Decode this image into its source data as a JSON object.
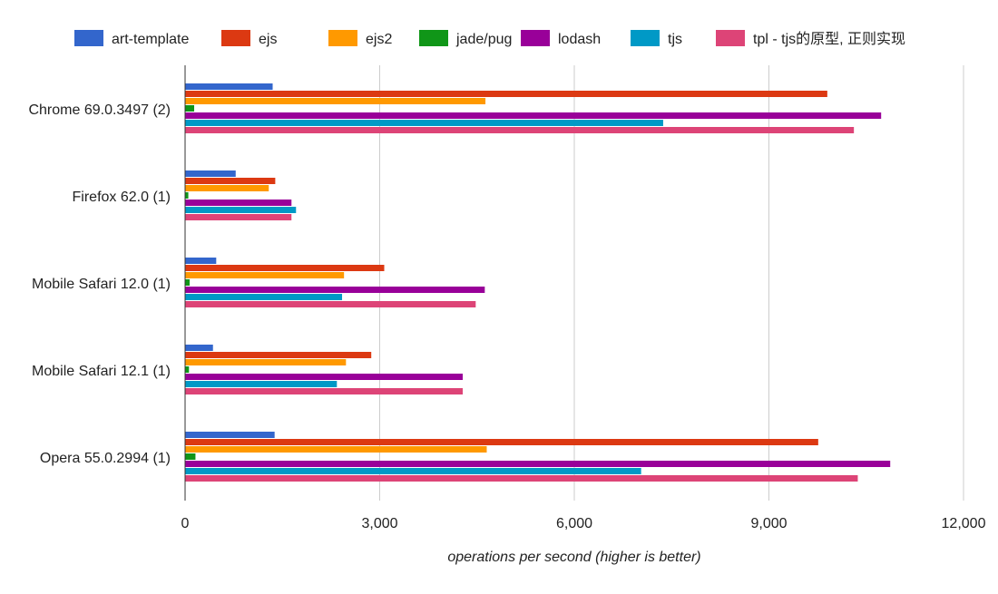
{
  "chart_data": {
    "type": "bar",
    "orientation": "horizontal",
    "title": "",
    "xlabel": "operations per second (higher is better)",
    "ylabel": "",
    "xlim": [
      0,
      12000
    ],
    "x_ticks": [
      0,
      3000,
      6000,
      9000,
      12000
    ],
    "x_tick_labels": [
      "0",
      "3,000",
      "6,000",
      "9,000",
      "12,000"
    ],
    "grid": true,
    "legend_position": "top",
    "categories": [
      "Chrome 69.0.3497 (2)",
      "Firefox 62.0 (1)",
      "Mobile Safari 12.0 (1)",
      "Mobile Safari 12.1 (1)",
      "Opera 55.0.2994 (1)"
    ],
    "series": [
      {
        "name": "art-template",
        "color": "#3366cc",
        "values": [
          1350,
          780,
          480,
          430,
          1380
        ]
      },
      {
        "name": "ejs",
        "color": "#dc3912",
        "values": [
          9900,
          1390,
          3070,
          2870,
          9760
        ]
      },
      {
        "name": "ejs2",
        "color": "#ff9900",
        "values": [
          4630,
          1290,
          2450,
          2480,
          4650
        ]
      },
      {
        "name": "jade/pug",
        "color": "#109618",
        "values": [
          140,
          50,
          70,
          60,
          160
        ]
      },
      {
        "name": "lodash",
        "color": "#990099",
        "values": [
          10730,
          1640,
          4620,
          4280,
          10870
        ]
      },
      {
        "name": "tjs",
        "color": "#0099c6",
        "values": [
          7370,
          1710,
          2420,
          2340,
          7030
        ]
      },
      {
        "name": "tpl - tjs的原型, 正则实现",
        "color": "#dd4477",
        "values": [
          10310,
          1640,
          4480,
          4280,
          10370
        ]
      }
    ]
  }
}
